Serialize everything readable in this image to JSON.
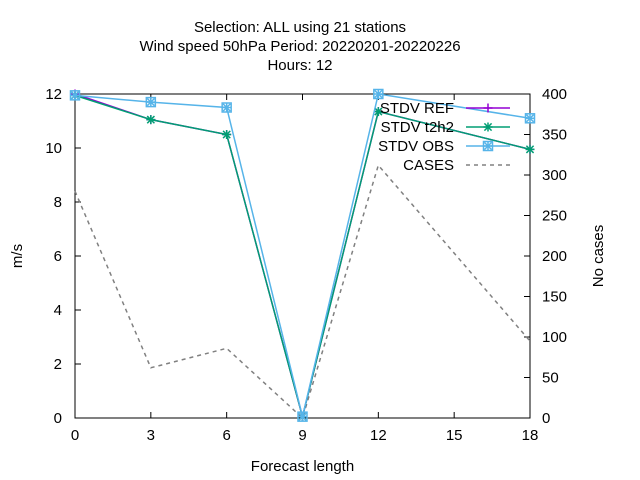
{
  "chart_data": {
    "type": "line",
    "title_lines": [
      "Selection: ALL using    21 stations",
      "Wind speed 50hPa   Period: 20220201-20220226",
      "Hours:  12"
    ],
    "xlabel": "Forecast length",
    "ylabel": "m/s",
    "y2label": "No cases",
    "xlim": [
      0,
      18
    ],
    "ylim": [
      0,
      12
    ],
    "y2lim": [
      0,
      400
    ],
    "xticks": [
      0,
      3,
      6,
      9,
      12,
      15,
      18
    ],
    "yticks": [
      0,
      2,
      4,
      6,
      8,
      10,
      12
    ],
    "y2ticks": [
      0,
      50,
      100,
      150,
      200,
      250,
      300,
      350,
      400
    ],
    "grid": false,
    "legend_position": "top-right",
    "series": [
      {
        "name": "STDV REF",
        "axis": "y",
        "color": "#9400d3",
        "marker": "plus",
        "dashed": false,
        "x": [
          0,
          3,
          6,
          9,
          12,
          18
        ],
        "y": [
          12.0,
          11.05,
          10.5,
          0.05,
          11.35,
          9.95
        ]
      },
      {
        "name": "STDV t2h2",
        "axis": "y",
        "color": "#009e73",
        "marker": "star",
        "dashed": false,
        "x": [
          0,
          3,
          6,
          9,
          12,
          18
        ],
        "y": [
          11.95,
          11.05,
          10.5,
          0.05,
          11.35,
          9.95
        ]
      },
      {
        "name": "STDV OBS",
        "axis": "y",
        "color": "#56b4e9",
        "marker": "boxstar",
        "dashed": false,
        "x": [
          0,
          3,
          6,
          9,
          12,
          18
        ],
        "y": [
          11.95,
          11.7,
          11.5,
          0.05,
          12.0,
          11.1
        ]
      },
      {
        "name": "CASES",
        "axis": "y2",
        "color": "#808080",
        "marker": "none",
        "dashed": true,
        "x": [
          0,
          3,
          6,
          9,
          12,
          18
        ],
        "y": [
          280,
          62,
          86,
          0,
          312,
          95
        ]
      }
    ]
  }
}
